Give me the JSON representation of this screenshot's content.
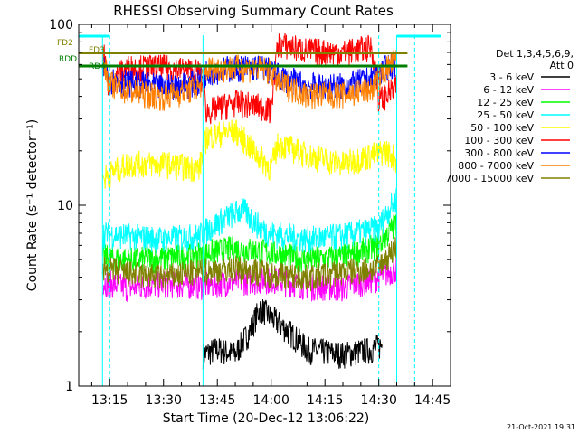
{
  "chart_data": {
    "type": "line",
    "title": "RHESSI Observing Summary Count Rates",
    "xlabel": "Start Time (20-Dec-12 13:06:22)",
    "ylabel": "Count Rate (s⁻¹ detector⁻¹)",
    "y_scale": "log",
    "ylim": [
      1,
      100
    ],
    "xlim_minutes": [
      "13:06:22",
      "14:50:00"
    ],
    "x_tick_labels": [
      "13:15",
      "13:30",
      "13:45",
      "14:00",
      "14:15",
      "14:30",
      "14:45"
    ],
    "y_tick_labels": [
      "1",
      "10",
      "100"
    ],
    "legend_header": [
      "Det 1,3,4,5,6,9,",
      "Att 0"
    ],
    "markers": [
      {
        "label": "FD2",
        "value": 0.0
      },
      {
        "label": "FD3",
        "value": 0.0
      },
      {
        "label": "RDD",
        "value": 0.0
      },
      {
        "label": "RD4",
        "value": 0.0
      }
    ],
    "series": [
      {
        "name": "3 - 6 keV",
        "color": "#000000",
        "x": [
          "13:41",
          "13:45",
          "13:50",
          "13:54",
          "13:57",
          "14:00",
          "14:10",
          "14:20",
          "14:28",
          "14:31"
        ],
        "y": [
          1.5,
          1.6,
          1.5,
          2.0,
          2.7,
          2.4,
          1.6,
          1.5,
          1.6,
          1.7
        ]
      },
      {
        "name": "6 - 12 keV",
        "color": "#ff00ff",
        "x": [
          "13:13",
          "13:20",
          "13:30",
          "13:40",
          "13:50",
          "14:00",
          "14:10",
          "14:20",
          "14:30",
          "14:35"
        ],
        "y": [
          3.8,
          3.5,
          3.7,
          3.6,
          3.8,
          3.9,
          3.6,
          3.5,
          4.0,
          4.5
        ]
      },
      {
        "name": "12 - 25 keV",
        "color": "#00ff00",
        "x": [
          "13:13",
          "13:20",
          "13:30",
          "13:40",
          "13:50",
          "14:00",
          "14:10",
          "14:20",
          "14:30",
          "14:35"
        ],
        "y": [
          5.2,
          5.0,
          5.1,
          5.4,
          5.8,
          5.5,
          5.0,
          5.2,
          6.0,
          8.0
        ]
      },
      {
        "name": "25 - 50 keV",
        "color": "#00ffff",
        "x": [
          "13:13",
          "13:20",
          "13:30",
          "13:40",
          "13:47",
          "13:52",
          "13:57",
          "14:00",
          "14:10",
          "14:20",
          "14:30",
          "14:35"
        ],
        "y": [
          7.0,
          6.8,
          6.5,
          6.8,
          8.5,
          9.5,
          7.5,
          7.0,
          6.5,
          6.8,
          7.5,
          11
        ]
      },
      {
        "name": "50 - 100 keV",
        "color": "#ffff00",
        "x": [
          "13:13",
          "13:15",
          "13:20",
          "13:30",
          "13:40",
          "13:42",
          "13:50",
          "13:55",
          "14:00",
          "14:02",
          "14:10",
          "14:20",
          "14:28",
          "14:32",
          "14:35"
        ],
        "y": [
          14,
          15,
          17,
          17,
          16,
          24,
          26,
          20,
          16,
          22,
          19,
          17,
          19,
          20,
          18
        ]
      },
      {
        "name": "100 - 300 keV",
        "color": "#ff0000",
        "x": [
          "13:13",
          "13:15",
          "13:16",
          "13:20",
          "13:30",
          "13:40",
          "13:42",
          "13:50",
          "13:58",
          "14:00",
          "14:02",
          "14:10",
          "14:20",
          "14:28",
          "14:30",
          "14:35"
        ],
        "y": [
          75,
          40,
          50,
          58,
          58,
          55,
          33,
          37,
          35,
          33,
          78,
          72,
          70,
          75,
          38,
          45
        ]
      },
      {
        "name": "300 - 800 keV",
        "color": "#0000ff",
        "x": [
          "13:13",
          "13:15",
          "13:20",
          "13:30",
          "13:40",
          "13:42",
          "13:50",
          "13:58",
          "14:00",
          "14:02",
          "14:10",
          "14:20",
          "14:28",
          "14:32",
          "14:35"
        ],
        "y": [
          60,
          50,
          48,
          45,
          48,
          55,
          58,
          58,
          55,
          52,
          46,
          46,
          50,
          58,
          62
        ]
      },
      {
        "name": "800 - 7000 keV",
        "color": "#ff8000",
        "x": [
          "13:13",
          "13:15",
          "13:20",
          "13:30",
          "13:40",
          "13:42",
          "13:50",
          "13:58",
          "14:00",
          "14:02",
          "14:10",
          "14:20",
          "14:28",
          "14:32",
          "14:35"
        ],
        "y": [
          65,
          47,
          43,
          40,
          45,
          57,
          58,
          57,
          55,
          48,
          41,
          41,
          44,
          57,
          64
        ]
      },
      {
        "name": "7000 - 15000 keV",
        "color": "#808000",
        "x": [
          "13:13",
          "13:20",
          "13:30",
          "13:40",
          "13:50",
          "14:00",
          "14:10",
          "14:20",
          "14:30",
          "14:35"
        ],
        "y": [
          4.5,
          4.2,
          4.0,
          4.3,
          4.5,
          4.2,
          4.0,
          4.3,
          4.5,
          6.0
        ]
      }
    ],
    "legend_placement": "right",
    "grid": false
  },
  "footer": {
    "timestamp": "21-Oct-2021 19:31"
  }
}
